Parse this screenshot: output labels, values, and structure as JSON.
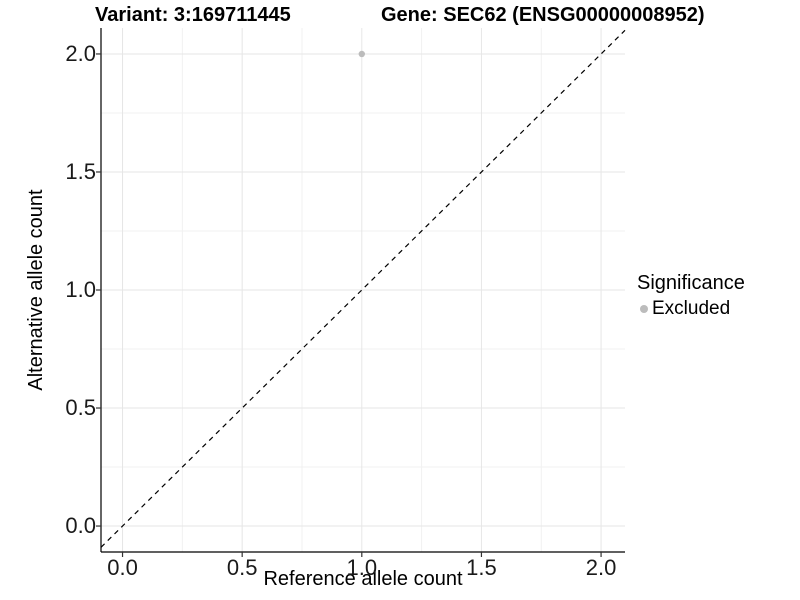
{
  "titles": {
    "variant": "Variant: 3:169711445",
    "gene": "Gene: SEC62 (ENSG00000008952)"
  },
  "legend": {
    "title": "Significance",
    "items": [
      {
        "label": "Excluded",
        "color": "#bcbcbc",
        "marker": "circle"
      }
    ]
  },
  "chart_data": {
    "type": "scatter",
    "title": "Variant: 3:169711445   Gene: SEC62 (ENSG00000008952)",
    "xlabel": "Reference allele count",
    "ylabel": "Alternative allele count",
    "xlim": [
      -0.09,
      2.1
    ],
    "ylim": [
      -0.11,
      2.11
    ],
    "x_ticks": [
      0.0,
      0.5,
      1.0,
      1.5,
      2.0
    ],
    "y_ticks": [
      0.0,
      0.5,
      1.0,
      1.5,
      2.0
    ],
    "x_tick_labels": [
      "0.0",
      "0.5",
      "1.0",
      "1.5",
      "2.0"
    ],
    "y_tick_labels": [
      "0.0",
      "0.5",
      "1.0",
      "1.5",
      "2.0"
    ],
    "minor_grid_interval": 0.25,
    "grid": "major+minor",
    "legend_position": "right",
    "series": [
      {
        "name": "Excluded",
        "color": "#bcbcbc",
        "points": [
          {
            "x": 1.0,
            "y": 2.0
          }
        ]
      }
    ],
    "reference_line": {
      "type": "identity y=x",
      "style": "dashed",
      "color": "#000000"
    }
  },
  "colors": {
    "background": "#ffffff",
    "axis_line": "#000000",
    "tick_mark": "#333333",
    "major_grid": "#e6e6e6",
    "minor_grid": "#f1f1f1",
    "point": "#bcbcbc",
    "text": "#000000"
  }
}
